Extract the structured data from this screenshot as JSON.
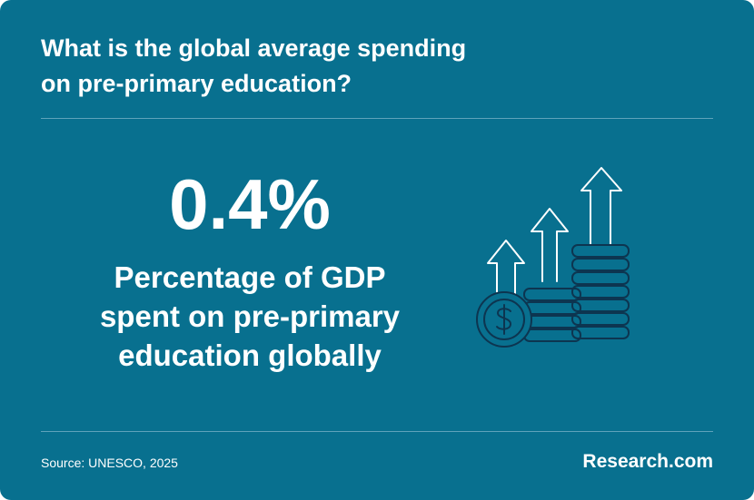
{
  "header": {
    "title_lines": [
      "What is the global average spending",
      "on pre-primary education?"
    ]
  },
  "stat": {
    "value": "0.4%",
    "description_lines": [
      "Percentage of GDP",
      "spent on pre-primary",
      "education globally"
    ]
  },
  "footer": {
    "source": "Source: UNESCO, 2025",
    "brand": "Research.com"
  }
}
